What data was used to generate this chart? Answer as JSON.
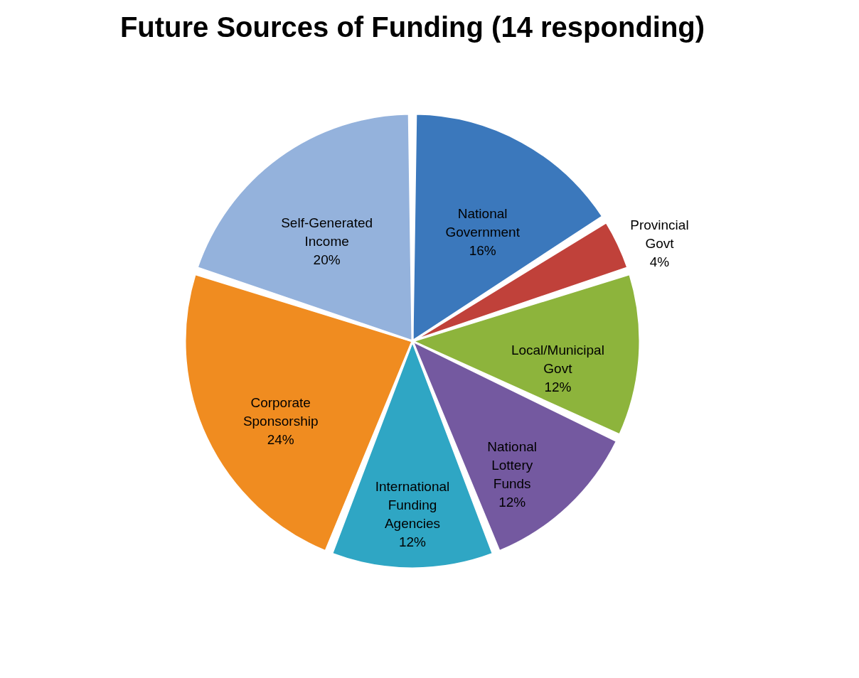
{
  "chart_data": {
    "type": "pie",
    "title": "Future Sources of Funding (14 responding)",
    "categories": [
      "National Government",
      "Provincial Govt",
      "Local/Municipal Govt",
      "National Lottery Funds",
      "International Funding Agencies",
      "Corporate Sponsorship",
      "Self-Generated Income"
    ],
    "values": [
      16,
      4,
      12,
      12,
      12,
      24,
      20
    ],
    "value_labels": [
      "16%",
      "4%",
      "12%",
      "12%",
      "12%",
      "24%",
      "20%"
    ],
    "colors": [
      "#3b78bc",
      "#c0413a",
      "#8db43c",
      "#7459a0",
      "#2fa6c4",
      "#f08c20",
      "#94b2dc"
    ]
  }
}
